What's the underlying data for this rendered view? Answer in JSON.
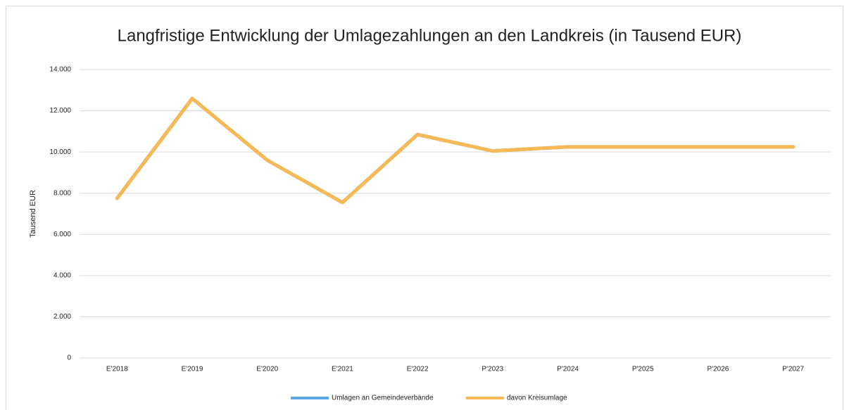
{
  "chart_data": {
    "type": "line",
    "title": "Langfristige Entwicklung der Umlagezahlungen an den Landkreis (in Tausend EUR)",
    "y_label": "Tausend EUR",
    "categories": [
      "E'2018",
      "E'2019",
      "E'2020",
      "E'2021",
      "E'2022",
      "P'2023",
      "P'2024",
      "P'2025",
      "P'2026",
      "P'2027"
    ],
    "series": [
      {
        "name": "Umlagen an Gemeindeverbände",
        "color": "#5aa9e6",
        "values": [
          7750,
          12600,
          9600,
          7550,
          10850,
          10050,
          10250,
          10250,
          10250,
          10250
        ]
      },
      {
        "name": "davon Kreisumlage",
        "color": "#f7b955",
        "values": [
          7750,
          12600,
          9600,
          7550,
          10850,
          10050,
          10250,
          10250,
          10250,
          10250
        ]
      }
    ],
    "ylim": [
      0,
      14000
    ],
    "yticks": [
      0,
      {
        "value": 2000,
        "label": "2.000"
      },
      {
        "value": 4000,
        "label": "4.000"
      },
      {
        "value": 6000,
        "label": "6.000"
      },
      {
        "value": 8000,
        "label": "8.000"
      },
      {
        "value": 10000,
        "label": "10.000"
      },
      {
        "value": 12000,
        "label": "12.000"
      },
      {
        "value": 14000,
        "label": "14.000"
      }
    ],
    "grid": true,
    "legend": "bottom"
  }
}
